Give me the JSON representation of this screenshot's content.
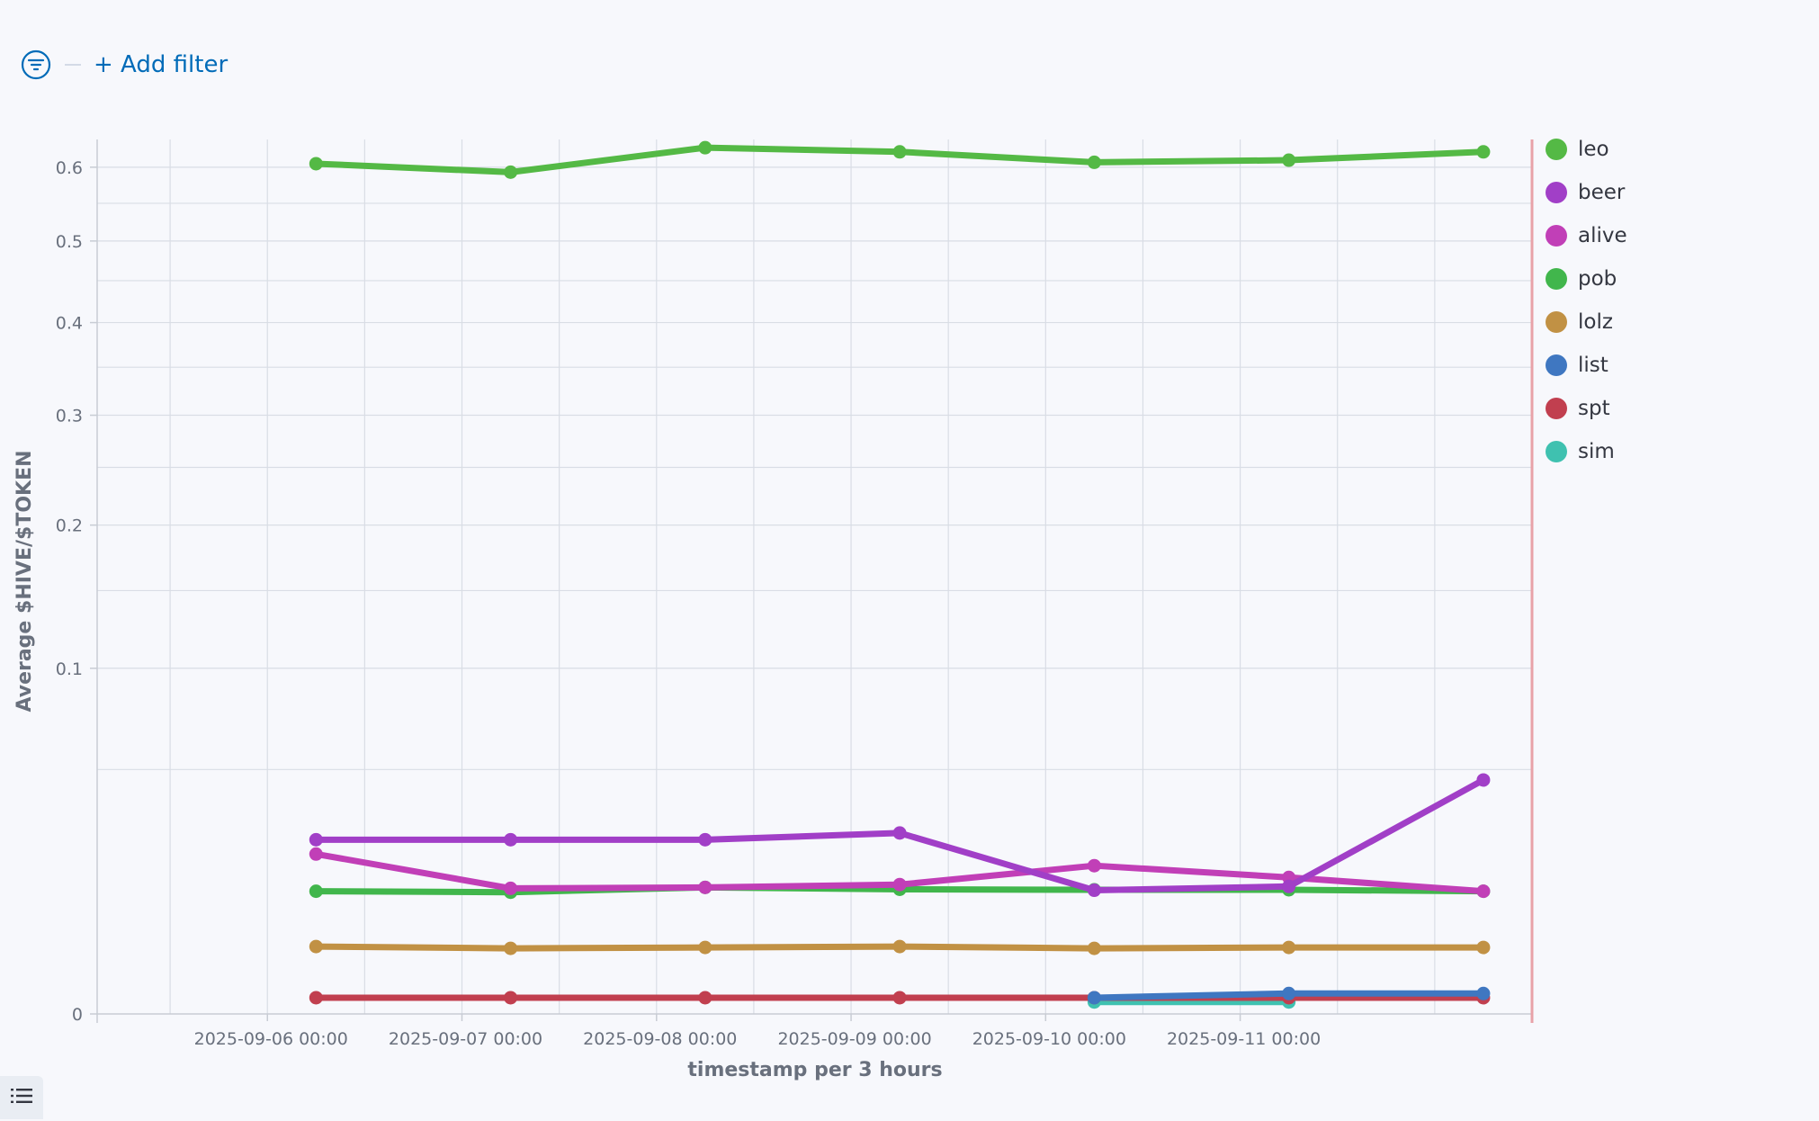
{
  "filter_bar": {
    "add_filter_label": "+ Add filter"
  },
  "chart_data": {
    "type": "line",
    "xlabel": "timestamp per 3 hours",
    "ylabel": "Average $HIVE/$TOKEN",
    "y_scale": "sqrt",
    "ylim": [
      0,
      0.64
    ],
    "y_ticks": [
      0,
      0.1,
      0.2,
      0.3,
      0.4,
      0.5,
      0.6
    ],
    "y_tick_labels": [
      "0",
      "0.1",
      "0.2",
      "0.3",
      "0.4",
      "0.5",
      "0.6"
    ],
    "x_ticks": [
      "2025-09-06 00:00",
      "2025-09-07 00:00",
      "2025-09-08 00:00",
      "2025-09-09 00:00",
      "2025-09-10 00:00",
      "2025-09-11 00:00"
    ],
    "x_tick_labels": [
      "2025-09-06 00:00",
      "2025-09-07 00:00",
      "2025-09-08 00:00",
      "2025-09-09 00:00",
      "2025-09-10 00:00",
      "2025-09-11 00:00"
    ],
    "xlim": [
      "2025-09-05 03:00",
      "2025-09-12 12:00"
    ],
    "x": [
      "2025-09-06 06:00",
      "2025-09-07 06:00",
      "2025-09-08 06:00",
      "2025-09-09 06:00",
      "2025-09-10 06:00",
      "2025-09-11 06:00",
      "2025-09-12 06:00"
    ],
    "grid": true,
    "legend_position": "right",
    "series": [
      {
        "name": "leo",
        "color": "#54b945",
        "values": [
          0.605,
          0.593,
          0.628,
          0.622,
          0.607,
          0.61,
          0.622
        ]
      },
      {
        "name": "beer",
        "color": "#a13fc7",
        "values": [
          0.0254,
          0.0254,
          0.0254,
          0.0274,
          0.0128,
          0.0136,
          0.0458
        ]
      },
      {
        "name": "alive",
        "color": "#c13fb7",
        "values": [
          0.0214,
          0.0132,
          0.0134,
          0.014,
          0.0184,
          0.0156,
          0.0126
        ]
      },
      {
        "name": "pob",
        "color": "#41b64c",
        "values": [
          0.0126,
          0.0124,
          0.0134,
          0.013,
          0.0129,
          0.0129,
          0.0126
        ]
      },
      {
        "name": "lolz",
        "color": "#c19144",
        "values": [
          0.0038,
          0.0036,
          0.0037,
          0.0038,
          0.0036,
          0.0037,
          0.0037
        ]
      },
      {
        "name": "list",
        "color": "#3f77c1",
        "values": [
          null,
          null,
          null,
          null,
          0.00022,
          0.00035,
          0.00035
        ]
      },
      {
        "name": "spt",
        "color": "#c13f4f",
        "values": [
          0.00022,
          0.00022,
          0.00022,
          0.00022,
          0.00022,
          0.00022,
          0.00022
        ]
      },
      {
        "name": "sim",
        "color": "#3fc1b0",
        "values": [
          null,
          null,
          null,
          null,
          0.00012,
          0.00012,
          null
        ]
      }
    ]
  }
}
